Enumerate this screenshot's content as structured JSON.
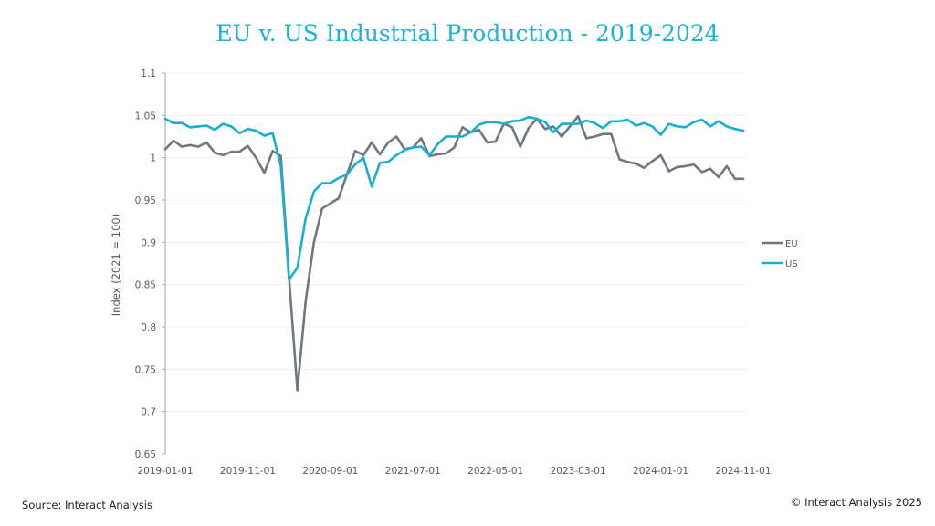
{
  "chart_data": {
    "type": "line",
    "title": "EU v. US Industrial Production - 2019-2024",
    "xlabel": "",
    "ylabel": "Index (2021 = 100)",
    "ylim": [
      0.65,
      1.1
    ],
    "yticks": [
      "0.65",
      "0.7",
      "0.75",
      "0.8",
      "0.85",
      "0.9",
      "0.95",
      "1",
      "1.05",
      "1.1"
    ],
    "ytick_values": [
      0.65,
      0.7,
      0.75,
      0.8,
      0.85,
      0.9,
      0.95,
      1.0,
      1.05,
      1.1
    ],
    "x_start": "2019-01-01",
    "x_end": "2024-11-01",
    "xticks": [
      "2019-01-01",
      "2019-11-01",
      "2020-09-01",
      "2021-07-01",
      "2022-05-01",
      "2023-03-01",
      "2024-01-01",
      "2024-11-01"
    ],
    "xtick_month_index": [
      0,
      10,
      20,
      30,
      40,
      50,
      60,
      70
    ],
    "grid": true,
    "legend_position": "right",
    "series": [
      {
        "name": "EU",
        "color": "#6f7780",
        "values": [
          1.01,
          1.02,
          1.013,
          1.015,
          1.013,
          1.018,
          1.006,
          1.003,
          1.007,
          1.007,
          1.014,
          1.0,
          0.982,
          1.008,
          1.002,
          0.858,
          0.725,
          0.83,
          0.9,
          0.94,
          0.946,
          0.952,
          0.98,
          1.008,
          1.003,
          1.018,
          1.004,
          1.018,
          1.025,
          1.01,
          1.012,
          1.023,
          1.002,
          1.004,
          1.005,
          1.012,
          1.036,
          1.03,
          1.033,
          1.018,
          1.019,
          1.04,
          1.036,
          1.013,
          1.035,
          1.046,
          1.034,
          1.037,
          1.025,
          1.037,
          1.049,
          1.023,
          1.025,
          1.028,
          1.028,
          0.998,
          0.995,
          0.993,
          0.988,
          0.996,
          1.003,
          0.984,
          0.989,
          0.99,
          0.992,
          0.983,
          0.987,
          0.977,
          0.99,
          0.975,
          0.975
        ]
      },
      {
        "name": "US",
        "color": "#17b0d3",
        "values": [
          1.046,
          1.041,
          1.041,
          1.036,
          1.037,
          1.038,
          1.033,
          1.04,
          1.037,
          1.029,
          1.034,
          1.032,
          1.026,
          1.029,
          0.99,
          0.856,
          0.87,
          0.928,
          0.96,
          0.97,
          0.97,
          0.976,
          0.98,
          0.992,
          1.0,
          0.966,
          0.994,
          0.995,
          1.003,
          1.009,
          1.012,
          1.013,
          1.003,
          1.016,
          1.025,
          1.025,
          1.025,
          1.03,
          1.039,
          1.042,
          1.042,
          1.04,
          1.043,
          1.044,
          1.048,
          1.046,
          1.042,
          1.03,
          1.04,
          1.04,
          1.04,
          1.044,
          1.041,
          1.035,
          1.043,
          1.043,
          1.045,
          1.038,
          1.041,
          1.037,
          1.027,
          1.04,
          1.037,
          1.036,
          1.042,
          1.045,
          1.037,
          1.043,
          1.037,
          1.034,
          1.032
        ]
      }
    ]
  },
  "footer": {
    "source": "Source: Interact Analysis",
    "copyright": "© Interact Analysis 2025"
  }
}
